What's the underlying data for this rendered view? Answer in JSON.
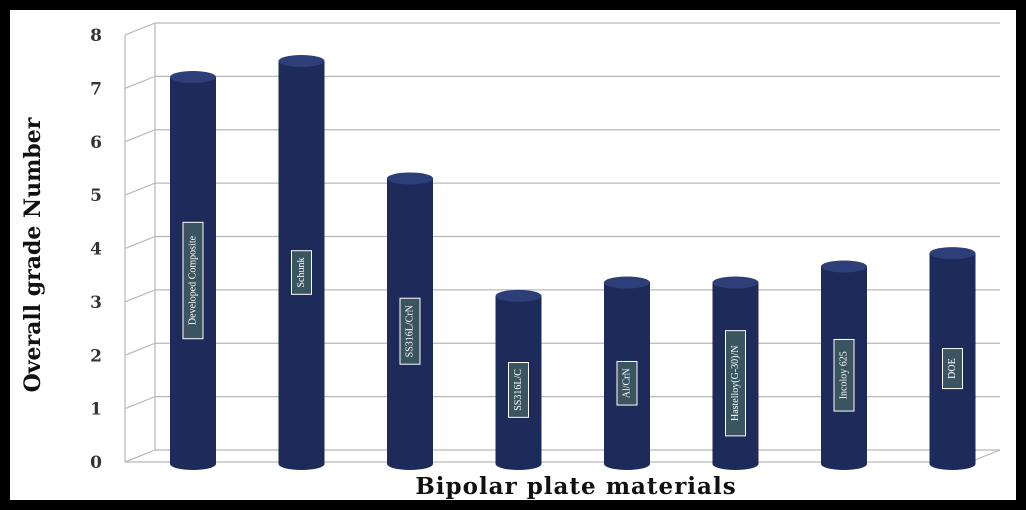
{
  "colors": {
    "bar": "#1d2b5a",
    "bar_top": "#2d3e78",
    "grid": "#b8b8b8",
    "label_box": "#3a5560",
    "frame": "#000000"
  },
  "chart_data": {
    "type": "bar",
    "title": "",
    "xlabel": "Bipolar plate materials",
    "ylabel": "Overall grade Number",
    "ylim": [
      0,
      8
    ],
    "yticks": [
      0,
      1,
      2,
      3,
      4,
      5,
      6,
      7,
      8
    ],
    "grid": true,
    "legend": "none",
    "categories": [
      "Developed Composite",
      "Schunk",
      "SS316L/CrN",
      "SS316L/C",
      "Al/CrN",
      "Hastelloy(G-30)/N",
      "Incoloy 625",
      "DOE"
    ],
    "values": [
      7.1,
      7.4,
      5.2,
      3.0,
      3.25,
      3.25,
      3.55,
      3.8
    ]
  }
}
